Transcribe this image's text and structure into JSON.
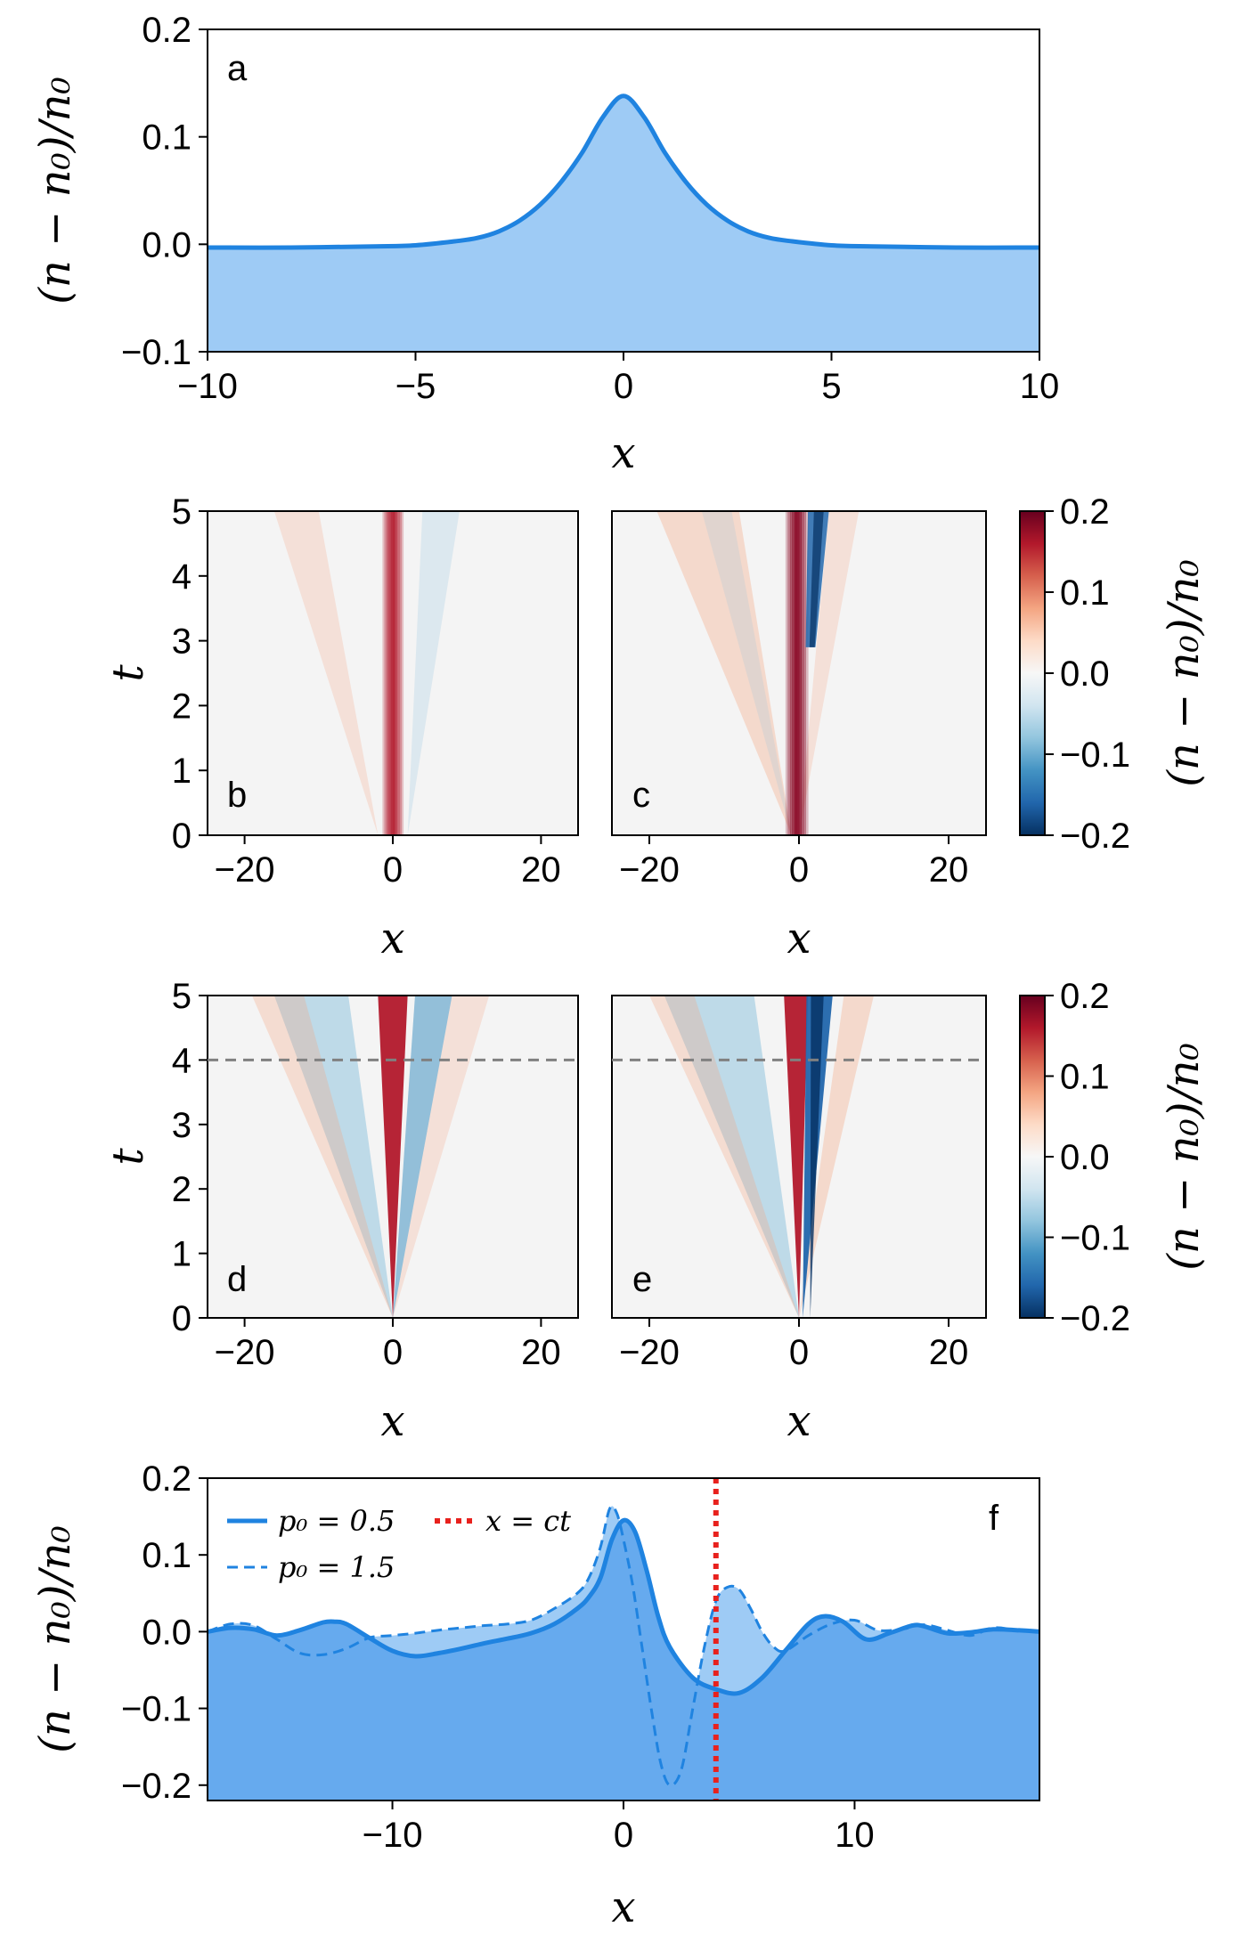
{
  "colors": {
    "blue": "#1f83e0",
    "light_fill": "#9ecbf5",
    "dark_fill": "#66aaee",
    "red": "#e8211d",
    "gray": "#808080",
    "cmap": [
      "#053061",
      "#2166ac",
      "#4393c3",
      "#92c5de",
      "#d1e5f0",
      "#f7f7f7",
      "#fddbc7",
      "#f4a582",
      "#d6604d",
      "#b2182b",
      "#67001f"
    ]
  },
  "chart_data": [
    {
      "panel": "a",
      "type": "area",
      "xlabel": "x",
      "ylabel": "(n − n₀)/n₀",
      "xlim": [
        -10,
        10
      ],
      "ylim": [
        -0.1,
        0.2
      ],
      "xticks": [
        "−10",
        "−5",
        "0",
        "5",
        "10"
      ],
      "yticks": [
        "−0.1",
        "0.0",
        "0.1",
        "0.2"
      ],
      "x": [
        -10,
        -8,
        -6,
        -5,
        -4,
        -3.5,
        -3,
        -2.5,
        -2,
        -1.5,
        -1,
        -0.5,
        0,
        0.5,
        1,
        1.5,
        2,
        2.5,
        3,
        3.5,
        4,
        5,
        6,
        8,
        10
      ],
      "y": [
        -0.003,
        -0.003,
        -0.002,
        -0.001,
        0.003,
        0.006,
        0.012,
        0.022,
        0.037,
        0.058,
        0.085,
        0.118,
        0.138,
        0.118,
        0.085,
        0.058,
        0.037,
        0.022,
        0.012,
        0.006,
        0.003,
        -0.001,
        -0.002,
        -0.003,
        -0.003
      ]
    },
    {
      "panel": "b",
      "type": "heatmap",
      "xlabel": "x",
      "ylabel": "t",
      "xlim": [
        -25,
        25
      ],
      "ylim": [
        0,
        5
      ],
      "xticks": [
        "−20",
        "0",
        "20"
      ],
      "yticks": [
        "0",
        "1",
        "2",
        "3",
        "4",
        "5"
      ]
    },
    {
      "panel": "c",
      "type": "heatmap",
      "xlabel": "x",
      "xlim": [
        -25,
        25
      ],
      "ylim": [
        0,
        5
      ],
      "xticks": [
        "−20",
        "0",
        "20"
      ]
    },
    {
      "panel": "d",
      "type": "heatmap",
      "xlabel": "x",
      "ylabel": "t",
      "xlim": [
        -25,
        25
      ],
      "ylim": [
        0,
        5
      ],
      "hline_t": 4,
      "xticks": [
        "−20",
        "0",
        "20"
      ],
      "yticks": [
        "0",
        "1",
        "2",
        "3",
        "4",
        "5"
      ]
    },
    {
      "panel": "e",
      "type": "heatmap",
      "xlabel": "x",
      "xlim": [
        -25,
        25
      ],
      "ylim": [
        0,
        5
      ],
      "hline_t": 4,
      "xticks": [
        "−20",
        "0",
        "20"
      ]
    },
    {
      "panel": "colorbar",
      "label": "(n − n₀)/n₀",
      "range": [
        -0.2,
        0.2
      ],
      "ticks": [
        "−0.2",
        "−0.1",
        "0.0",
        "0.1",
        "0.2"
      ]
    },
    {
      "panel": "f",
      "type": "line",
      "xlabel": "x",
      "ylabel": "(n − n₀)/n₀",
      "xlim": [
        -18,
        18
      ],
      "ylim": [
        -0.22,
        0.2
      ],
      "xticks": [
        "−10",
        "0",
        "10"
      ],
      "yticks": [
        "−0.2",
        "−0.1",
        "0.0",
        "0.1",
        "0.2"
      ],
      "vline_x": 4,
      "legend": {
        "solid": "p₀ = 0.5",
        "dashed": "p₀ = 1.5",
        "dotted": "x = ct"
      },
      "series": [
        {
          "name": "p₀ = 0.5",
          "x": [
            -18,
            -17,
            -16,
            -15,
            -14,
            -13,
            -12.5,
            -12,
            -11,
            -10,
            -9,
            -8,
            -7,
            -6,
            -5,
            -4,
            -3,
            -2,
            -1.5,
            -1,
            -0.5,
            0,
            0.5,
            1,
            1.5,
            2,
            3,
            4,
            5,
            6,
            7,
            8,
            8.7,
            9.5,
            10.5,
            11.5,
            12.5,
            13,
            14,
            15,
            16,
            17,
            18
          ],
          "y": [
            0.0,
            0.005,
            0.003,
            -0.005,
            0.002,
            0.012,
            0.013,
            0.01,
            -0.008,
            -0.025,
            -0.032,
            -0.028,
            -0.022,
            -0.015,
            -0.009,
            -0.002,
            0.01,
            0.03,
            0.045,
            0.07,
            0.12,
            0.145,
            0.13,
            0.08,
            0.02,
            -0.02,
            -0.06,
            -0.075,
            -0.08,
            -0.06,
            -0.025,
            0.01,
            0.02,
            0.013,
            -0.01,
            -0.002,
            0.008,
            0.007,
            -0.002,
            -0.001,
            0.003,
            0.002,
            0.0
          ]
        },
        {
          "name": "p₀ = 1.5",
          "x": [
            -18,
            -17,
            -16,
            -15,
            -14,
            -13,
            -12,
            -11,
            -10,
            -9,
            -8,
            -7,
            -6,
            -5,
            -4,
            -3,
            -2,
            -1.5,
            -1,
            -0.6,
            -0.3,
            0,
            0.4,
            0.8,
            1.2,
            1.6,
            2,
            2.5,
            3,
            3.5,
            4,
            4.5,
            5,
            5.5,
            6,
            6.5,
            7,
            8,
            9,
            10,
            11,
            12,
            13,
            14,
            15,
            16,
            17,
            18
          ],
          "y": [
            0.0,
            0.01,
            0.008,
            -0.01,
            -0.028,
            -0.03,
            -0.022,
            -0.008,
            -0.005,
            -0.002,
            0.002,
            0.005,
            0.008,
            0.01,
            0.015,
            0.03,
            0.05,
            0.07,
            0.11,
            0.16,
            0.155,
            0.12,
            0.06,
            -0.02,
            -0.1,
            -0.17,
            -0.2,
            -0.18,
            -0.1,
            -0.02,
            0.04,
            0.058,
            0.055,
            0.03,
            0.0,
            -0.02,
            -0.025,
            -0.005,
            0.01,
            0.015,
            0.002,
            0.003,
            0.009,
            0.002,
            -0.005,
            0.005,
            0.002,
            0.0
          ]
        }
      ]
    }
  ]
}
